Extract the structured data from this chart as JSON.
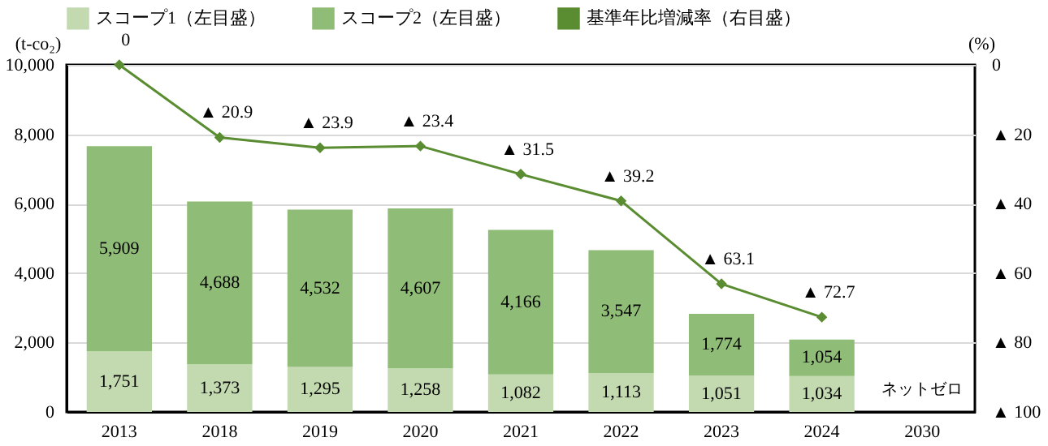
{
  "chart_data": {
    "type": "bar",
    "stacked": true,
    "categories": [
      "2013",
      "2018",
      "2019",
      "2020",
      "2021",
      "2022",
      "2023",
      "2024",
      "2030"
    ],
    "ylabel": "(t-co₂)",
    "y2label": "(%)",
    "ylim": [
      0,
      10000
    ],
    "yticks": [
      0,
      {
        "value": 2000,
        "label": "2,000"
      },
      {
        "value": 4000,
        "label": "4,000"
      },
      {
        "value": 6000,
        "label": "6,000"
      },
      {
        "value": 8000,
        "label": "8,000"
      },
      {
        "value": 10000,
        "label": "10,000"
      }
    ],
    "y2lim": [
      100,
      0
    ],
    "y2ticks": [
      0,
      {
        "value": 20,
        "label": "▲ 20"
      },
      {
        "value": 40,
        "label": "▲ 40"
      },
      {
        "value": 60,
        "label": "▲ 60"
      },
      {
        "value": 80,
        "label": "▲ 80"
      },
      {
        "value": 100,
        "label": "▲ 100"
      }
    ],
    "series": [
      {
        "name": "スコープ1（左目盛）",
        "color": "#c3dab1",
        "values": [
          1751,
          1373,
          1295,
          1258,
          1082,
          1113,
          1051,
          1034,
          null
        ],
        "value_labels": [
          "1,751",
          "1,373",
          "1,295",
          "1,258",
          "1,082",
          "1,113",
          "1,051",
          "1,034",
          null
        ]
      },
      {
        "name": "スコープ2（左目盛）",
        "color": "#8fbc76",
        "values": [
          5909,
          4688,
          4532,
          4607,
          4166,
          3547,
          1774,
          1054,
          null
        ],
        "value_labels": [
          "5,909",
          "4,688",
          "4,532",
          "4,607",
          "4,166",
          "3,547",
          "1,774",
          "1,054",
          null
        ]
      },
      {
        "name": "基準年比増減率（右目盛）",
        "type": "line",
        "axis": "y2",
        "color": "#5a8c31",
        "marker": "diamond",
        "values": [
          0,
          20.9,
          23.9,
          23.4,
          31.5,
          39.2,
          63.1,
          72.7,
          null
        ],
        "value_labels": [
          "0",
          "▲ 20.9",
          "▲ 23.9",
          "▲ 23.4",
          "▲ 31.5",
          "▲ 39.2",
          "▲ 63.1",
          "▲ 72.7",
          null
        ]
      }
    ],
    "grid": "y",
    "legend": "top",
    "annotations": [
      "ネットゼロ"
    ]
  }
}
